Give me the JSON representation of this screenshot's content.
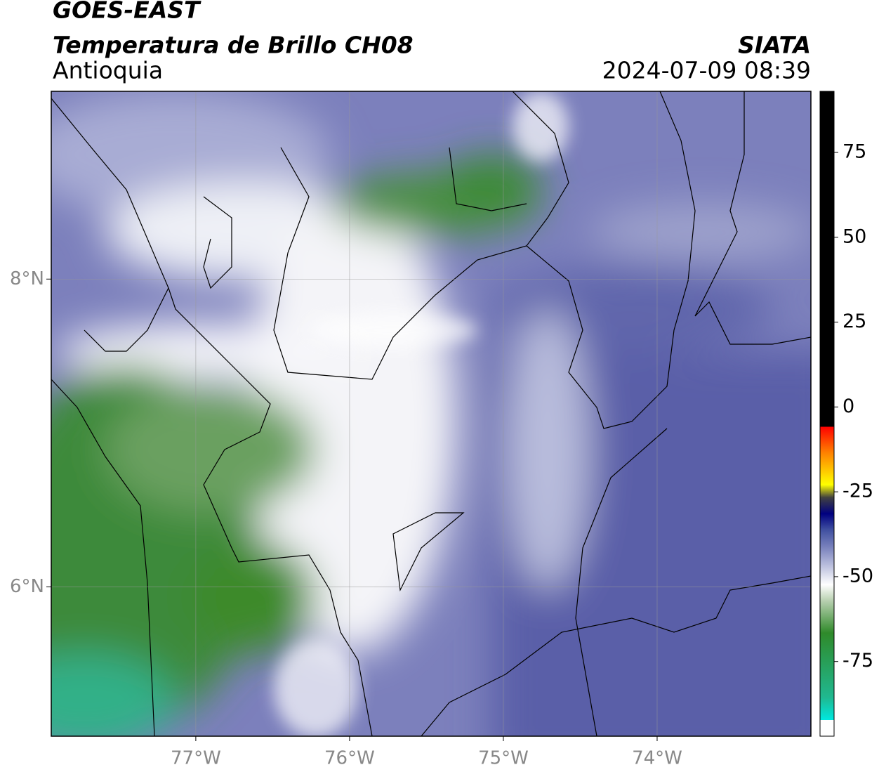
{
  "header": {
    "satellite": "GOES-EAST",
    "product": "Temperatura de Brillo CH08",
    "region": "Antioquia",
    "source": "SIATA",
    "datetime": "2024-07-09 08:39"
  },
  "map": {
    "lonlim": [
      -77.94,
      -73.0
    ],
    "latlim": [
      5.03,
      9.22
    ],
    "lonticks": [
      {
        "value": -77,
        "label": "77°W"
      },
      {
        "value": -76,
        "label": "76°W"
      },
      {
        "value": -75,
        "label": "75°W"
      },
      {
        "value": -74,
        "label": "74°W"
      }
    ],
    "latticks": [
      {
        "value": 8,
        "label": "8°N"
      },
      {
        "value": 6,
        "label": "6°N"
      }
    ]
  },
  "colorbar": {
    "lim": [
      -97,
      93
    ],
    "ticks": [
      75,
      50,
      25,
      0,
      -25,
      -50,
      -75
    ]
  }
}
